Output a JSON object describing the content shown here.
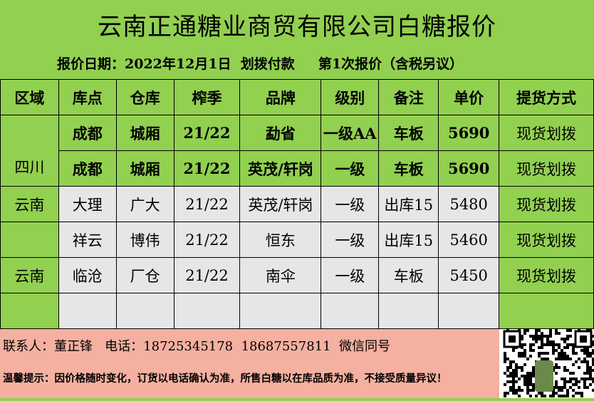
{
  "title": "云南正通糖业商贸有限公司白糖报价",
  "subtitle": "报价日期：2022年12月1日  划拨付款     第1次报价（含税另议）",
  "headers": [
    "区域",
    "库点",
    "仓库",
    "榨季",
    "品牌",
    "级别",
    "备注",
    "单价",
    "提货方式"
  ],
  "rows": [
    {
      "region": "",
      "depot": "成都",
      "warehouse": "城厢",
      "season": "21/22",
      "brand": "勐省",
      "grade": "一级AA",
      "note": "车板",
      "price": "5690",
      "delivery": "现货划拨"
    },
    {
      "region": "四川",
      "depot": "成都",
      "warehouse": "城厢",
      "season": "21/22",
      "brand": "英茂/轩岗",
      "grade": "一级",
      "note": "车板",
      "price": "5690",
      "delivery": "现货划拨"
    },
    {
      "region": "云南",
      "depot": "大理",
      "warehouse": "广大",
      "season": "21/22",
      "brand": "英茂/轩岗",
      "grade": "一级",
      "note": "出库15",
      "price": "5480",
      "delivery": "现货划拨"
    },
    {
      "region": "",
      "depot": "祥云",
      "warehouse": "博伟",
      "season": "21/22",
      "brand": "恒东",
      "grade": "一级",
      "note": "出库15",
      "price": "5460",
      "delivery": "现货划拨"
    },
    {
      "region": "云南",
      "depot": "临沧",
      "warehouse": "厂仓",
      "season": "21/22",
      "brand": "南伞",
      "grade": "一级",
      "note": "车板",
      "price": "5450",
      "delivery": "现货划拨"
    },
    {
      "region": "",
      "depot": "",
      "warehouse": "",
      "season": "",
      "brand": "",
      "grade": "",
      "note": "",
      "price": "",
      "delivery": ""
    }
  ],
  "footer": {
    "contact": "联系人：董正锋   电话：18725345178  18687557811  微信同号",
    "tip": "温馨提示：因价格随时变化，订货以电话确认为准，所售白糖以在库品质为准，不接受质量异议！"
  },
  "colors": {
    "green": "#92d050",
    "gray": "#e7e6e6",
    "pink": "#f4b0a0"
  },
  "qr_icon": "wechat-qr-code"
}
